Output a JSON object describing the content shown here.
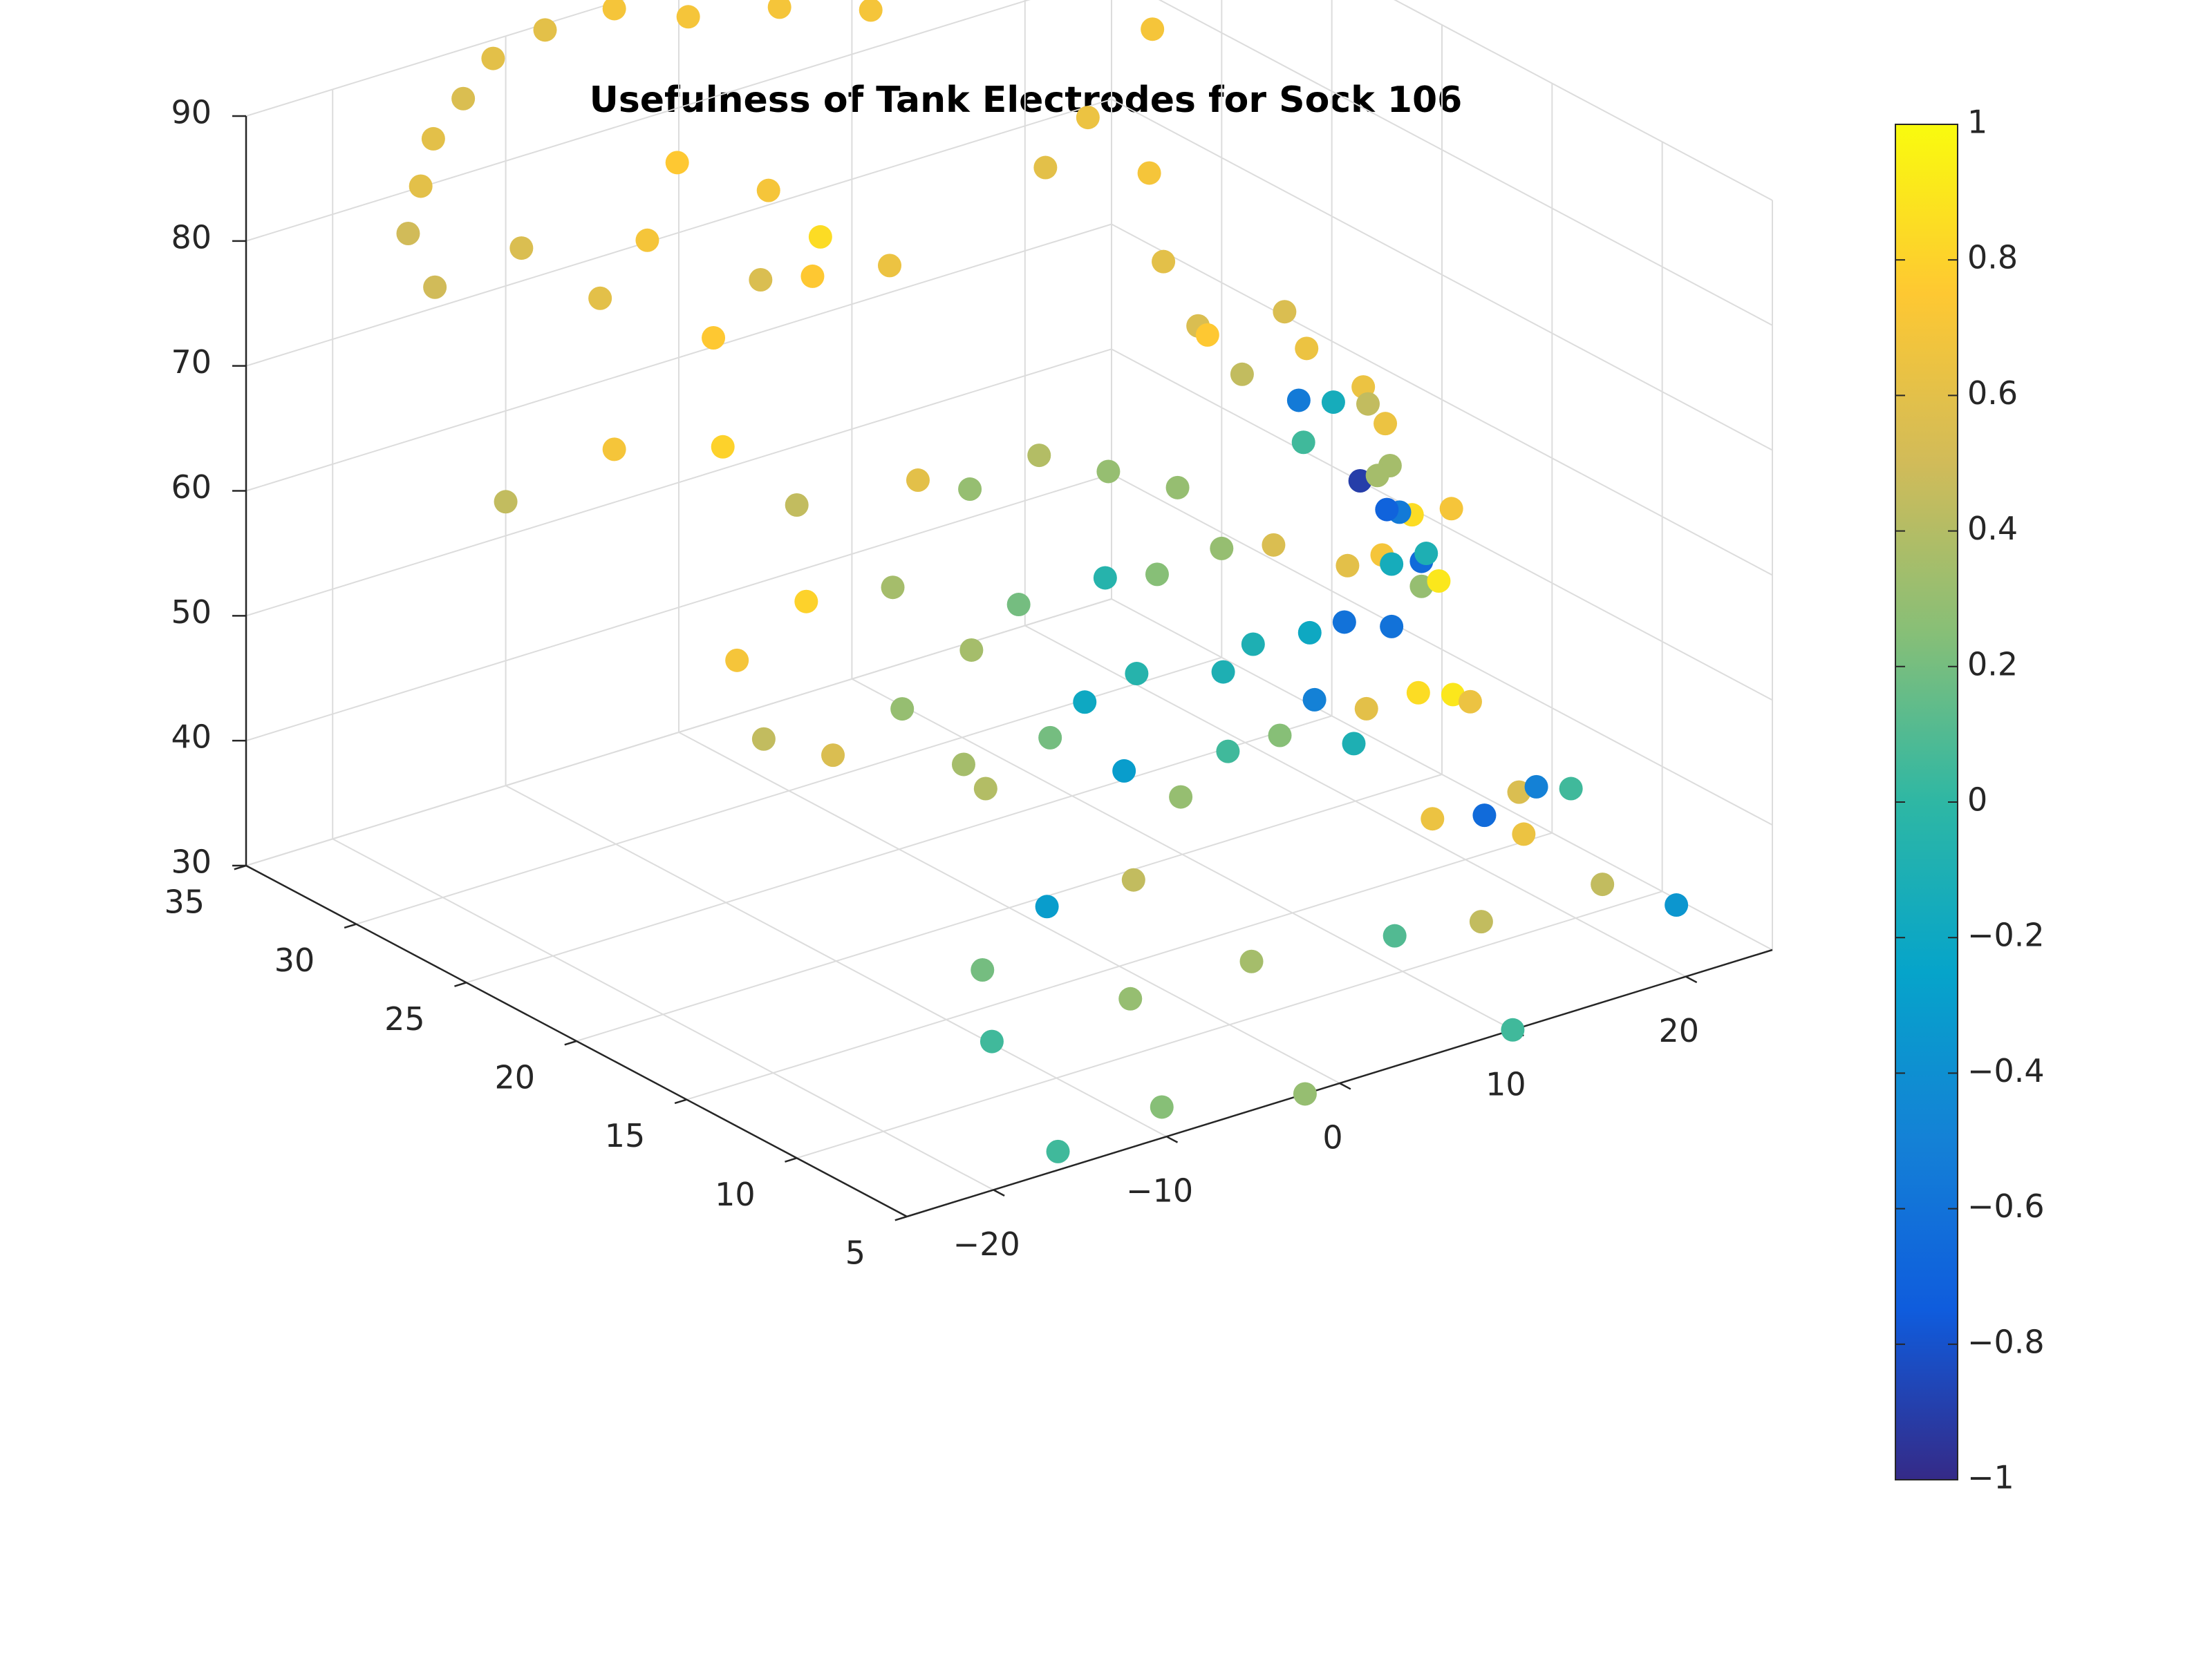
{
  "chart_data": {
    "type": "scatter",
    "title": "Usefulness of Tank Electrodes for Sock 106",
    "xlabel": "",
    "ylabel": "",
    "zlabel": "",
    "xlim": [
      -25,
      25
    ],
    "ylim": [
      5,
      35
    ],
    "zlim": [
      30,
      90
    ],
    "clim": [
      -1,
      1
    ],
    "x_ticks": [
      -20,
      -10,
      0,
      10,
      20
    ],
    "y_ticks": [
      5,
      10,
      15,
      20,
      25,
      30,
      35
    ],
    "z_ticks": [
      30,
      40,
      50,
      60,
      70,
      80,
      90
    ],
    "colorbar_ticks": [
      -1,
      -0.8,
      -0.6,
      -0.4,
      -0.2,
      0,
      0.2,
      0.4,
      0.6,
      0.8,
      1
    ],
    "colorbar_tick_labels": [
      "−1",
      "−0.8",
      "−0.6",
      "−0.4",
      "−0.2",
      "0",
      "0.2",
      "0.4",
      "0.6",
      "0.8",
      "1"
    ],
    "grid": true,
    "colormap": "parula",
    "colormap_stops": [
      "#352a87",
      "#0f5cdd",
      "#1481d6",
      "#06a4ca",
      "#2eb7a4",
      "#87bf77",
      "#d1bb59",
      "#fec832",
      "#f9fb0e"
    ],
    "points": [
      {
        "x": -23,
        "y": 28,
        "z": 82,
        "c": 0.5
      },
      {
        "x": -22,
        "y": 30,
        "z": 84,
        "c": 0.5
      },
      {
        "x": -20,
        "y": 31,
        "z": 86,
        "c": 0.6
      },
      {
        "x": -18,
        "y": 32,
        "z": 88,
        "c": 0.6
      },
      {
        "x": -15,
        "y": 33,
        "z": 89,
        "c": 0.55
      },
      {
        "x": -12,
        "y": 34,
        "z": 90,
        "c": 0.6
      },
      {
        "x": -9,
        "y": 34,
        "z": 91,
        "c": 0.6
      },
      {
        "x": -5,
        "y": 34,
        "z": 91,
        "c": 0.7
      },
      {
        "x": -2,
        "y": 33,
        "z": 90,
        "c": 0.7
      },
      {
        "x": 2,
        "y": 32,
        "z": 90,
        "c": 0.7
      },
      {
        "x": 6,
        "y": 31,
        "z": 89,
        "c": 0.7
      },
      {
        "x": -18,
        "y": 28,
        "z": 83,
        "c": 0.55
      },
      {
        "x": -16,
        "y": 26,
        "z": 80,
        "c": 0.6
      },
      {
        "x": -12,
        "y": 27,
        "z": 82,
        "c": 0.7
      },
      {
        "x": -9,
        "y": 28,
        "z": 86,
        "c": 0.75
      },
      {
        "x": -5,
        "y": 27,
        "z": 83,
        "c": 0.7
      },
      {
        "x": -12,
        "y": 24,
        "z": 77,
        "c": 0.75
      },
      {
        "x": -8,
        "y": 25,
        "z": 79,
        "c": 0.55
      },
      {
        "x": -5,
        "y": 25,
        "z": 78,
        "c": 0.75
      },
      {
        "x": -2,
        "y": 27,
        "z": 78,
        "c": 0.85
      },
      {
        "x": 2,
        "y": 27,
        "z": 74,
        "c": 0.65
      },
      {
        "x": 11,
        "y": 27,
        "z": 78,
        "c": 0.6
      },
      {
        "x": 14,
        "y": 24,
        "z": 72,
        "c": 0.6
      },
      {
        "x": 14,
        "y": 22,
        "z": 68,
        "c": 0.75
      },
      {
        "x": -24,
        "y": 24,
        "z": 69,
        "c": 0.45
      },
      {
        "x": -19,
        "y": 23,
        "z": 72,
        "c": 0.7
      },
      {
        "x": -14,
        "y": 22,
        "z": 71,
        "c": 0.8
      },
      {
        "x": -11,
        "y": 21,
        "z": 66,
        "c": 0.45
      },
      {
        "x": -13,
        "y": 19,
        "z": 61,
        "c": 0.8
      },
      {
        "x": -8,
        "y": 19,
        "z": 60,
        "c": 0.35
      },
      {
        "x": -4,
        "y": 21,
        "z": 65,
        "c": 0.6
      },
      {
        "x": -1,
        "y": 21,
        "z": 63,
        "c": 0.3
      },
      {
        "x": 3,
        "y": 21,
        "z": 64,
        "c": 0.4
      },
      {
        "x": 7,
        "y": 21,
        "z": 61,
        "c": 0.3
      },
      {
        "x": 11,
        "y": 21,
        "z": 58,
        "c": 0.3
      },
      {
        "x": -17,
        "y": 19,
        "z": 58,
        "c": 0.7
      },
      {
        "x": -18,
        "y": 17,
        "z": 54,
        "c": 0.45
      },
      {
        "x": -14,
        "y": 17,
        "z": 51,
        "c": 0.55
      },
      {
        "x": -10,
        "y": 17,
        "z": 53,
        "c": 0.3
      },
      {
        "x": -6,
        "y": 17,
        "z": 56,
        "c": 0.35
      },
      {
        "x": -2,
        "y": 18,
        "z": 57,
        "c": 0.2
      },
      {
        "x": 3,
        "y": 18,
        "z": 57,
        "c": -0.05
      },
      {
        "x": 6,
        "y": 18,
        "z": 56,
        "c": 0.25
      },
      {
        "x": 11,
        "y": 19,
        "z": 55,
        "c": 0.3
      },
      {
        "x": 14,
        "y": 19,
        "z": 54,
        "c": 0.55
      },
      {
        "x": 17,
        "y": 18,
        "z": 52,
        "c": 0.6
      },
      {
        "x": 19,
        "y": 18,
        "z": 52,
        "c": 0.7
      },
      {
        "x": -9,
        "y": 15,
        "z": 50,
        "c": 0.35
      },
      {
        "x": -9,
        "y": 14,
        "z": 49,
        "c": 0.4
      },
      {
        "x": -4,
        "y": 15,
        "z": 50,
        "c": 0.2
      },
      {
        "x": -2,
        "y": 15,
        "z": 52,
        "c": -0.2
      },
      {
        "x": 1,
        "y": 15,
        "z": 53,
        "c": -0.05
      },
      {
        "x": 6,
        "y": 15,
        "z": 51,
        "c": -0.1
      },
      {
        "x": 9,
        "y": 16,
        "z": 51,
        "c": -0.1
      },
      {
        "x": 11,
        "y": 15,
        "z": 52,
        "c": -0.2
      },
      {
        "x": 10,
        "y": 14,
        "z": 48,
        "c": -0.5
      },
      {
        "x": 13,
        "y": 15,
        "z": 52,
        "c": -0.6
      },
      {
        "x": 17,
        "y": 16,
        "z": 49,
        "c": -0.6
      },
      {
        "x": 17,
        "y": 16,
        "z": 54,
        "c": -0.15
      },
      {
        "x": 18,
        "y": 17,
        "z": 57,
        "c": -0.7
      },
      {
        "x": 19,
        "y": 16,
        "z": 54,
        "c": -0.1
      },
      {
        "x": 20,
        "y": 17,
        "z": 52,
        "c": -0.65
      },
      {
        "x": 20,
        "y": 17,
        "z": 50,
        "c": 0.3
      },
      {
        "x": 21,
        "y": 17,
        "z": 50,
        "c": 0.9
      },
      {
        "x": 20,
        "y": 18,
        "z": 55,
        "c": -0.55
      },
      {
        "x": 19,
        "y": 19,
        "z": 57,
        "c": -0.9
      },
      {
        "x": 17,
        "y": 20,
        "z": 60,
        "c": 0.05
      },
      {
        "x": 18,
        "y": 21,
        "z": 62,
        "c": -0.55
      },
      {
        "x": 20,
        "y": 21,
        "z": 61,
        "c": -0.15
      },
      {
        "x": 20,
        "y": 19,
        "z": 57,
        "c": 0.35
      },
      {
        "x": 22,
        "y": 20,
        "z": 56,
        "c": 0.35
      },
      {
        "x": 22,
        "y": 19,
        "z": 53,
        "c": 0.85
      },
      {
        "x": 23,
        "y": 18,
        "z": 54,
        "c": 0.7
      },
      {
        "x": 22,
        "y": 21,
        "z": 60,
        "c": 0.45
      },
      {
        "x": 23,
        "y": 22,
        "z": 60,
        "c": 0.65
      },
      {
        "x": 23,
        "y": 21,
        "z": 58,
        "c": 0.65
      },
      {
        "x": 21,
        "y": 23,
        "z": 63,
        "c": 0.65
      },
      {
        "x": 21,
        "y": 24,
        "z": 65,
        "c": 0.55
      },
      {
        "x": 16,
        "y": 22,
        "z": 64,
        "c": 0.45
      },
      {
        "x": 16,
        "y": 24,
        "z": 66,
        "c": 0.55
      },
      {
        "x": 17,
        "y": 27,
        "z": 75,
        "c": 0.7
      },
      {
        "x": 16,
        "y": 29,
        "z": 78,
        "c": 0.65
      },
      {
        "x": 21,
        "y": 30,
        "z": 82,
        "c": 0.7
      },
      {
        "x": 19,
        "y": 32,
        "z": 85,
        "c": 0.7
      },
      {
        "x": -13,
        "y": 11,
        "z": 39,
        "c": 0.2
      },
      {
        "x": -8,
        "y": 12,
        "z": 41,
        "c": -0.3
      },
      {
        "x": -3,
        "y": 12,
        "z": 41,
        "c": 0.45
      },
      {
        "x": 1,
        "y": 13,
        "z": 45,
        "c": 0.3
      },
      {
        "x": -1,
        "y": 14,
        "z": 47,
        "c": -0.3
      },
      {
        "x": 5,
        "y": 14,
        "z": 46,
        "c": 0.05
      },
      {
        "x": 8,
        "y": 14,
        "z": 46,
        "c": 0.25
      },
      {
        "x": 11,
        "y": 13,
        "z": 45,
        "c": -0.1
      },
      {
        "x": 13,
        "y": 14,
        "z": 46,
        "c": 0.6
      },
      {
        "x": 16,
        "y": 14,
        "z": 46,
        "c": 0.85
      },
      {
        "x": 18,
        "y": 14,
        "z": 45,
        "c": 0.9
      },
      {
        "x": 19,
        "y": 14,
        "z": 44,
        "c": 0.65
      },
      {
        "x": -15,
        "y": 9,
        "z": 36,
        "c": 0.05
      },
      {
        "x": -7,
        "y": 9,
        "z": 36,
        "c": 0.3
      },
      {
        "x": 0,
        "y": 9,
        "z": 36,
        "c": 0.35
      },
      {
        "x": 7,
        "y": 8,
        "z": 36,
        "c": 0.1
      },
      {
        "x": 12,
        "y": 8,
        "z": 35,
        "c": 0.45
      },
      {
        "x": 13,
        "y": 11,
        "z": 40,
        "c": 0.65
      },
      {
        "x": 16,
        "y": 11,
        "z": 39,
        "c": -0.65
      },
      {
        "x": 18,
        "y": 11,
        "z": 40,
        "c": 0.55
      },
      {
        "x": 19,
        "y": 11,
        "z": 40,
        "c": -0.5
      },
      {
        "x": 21,
        "y": 11,
        "z": 39,
        "c": 0.05
      },
      {
        "x": 17,
        "y": 10,
        "z": 38,
        "c": 0.65
      },
      {
        "x": 19,
        "y": 8,
        "z": 35,
        "c": 0.45
      },
      {
        "x": 22,
        "y": 7,
        "z": 33,
        "c": -0.35
      },
      {
        "x": -15,
        "y": 6,
        "z": 30,
        "c": 0.05
      },
      {
        "x": -9,
        "y": 6,
        "z": 31,
        "c": 0.25
      },
      {
        "x": -2,
        "y": 5,
        "z": 30,
        "c": 0.3
      },
      {
        "x": 10,
        "y": 5,
        "z": 30,
        "c": 0.05
      }
    ]
  }
}
